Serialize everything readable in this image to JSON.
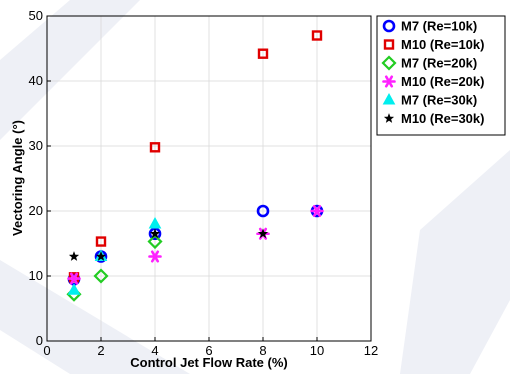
{
  "chart_data": {
    "type": "scatter",
    "xlabel": "Control Jet Flow Rate (%)",
    "ylabel": "Vectoring Angle (°)",
    "xlim": [
      0,
      12
    ],
    "ylim": [
      0,
      50
    ],
    "xticks": [
      "0",
      "2",
      "4",
      "6",
      "8",
      "10",
      "12"
    ],
    "yticks": [
      "0",
      "10",
      "20",
      "30",
      "40",
      "50"
    ],
    "grid": true,
    "legend_position": "outside-right",
    "series": [
      {
        "name": "M7 (Re=10k)",
        "marker": "circle-open",
        "color": "#0000ff",
        "points": [
          [
            1,
            9.5
          ],
          [
            2,
            13
          ],
          [
            4,
            16.5
          ],
          [
            8,
            20
          ],
          [
            10,
            20
          ]
        ]
      },
      {
        "name": "M10 (Re=10k)",
        "marker": "square-open",
        "color": "#e00000",
        "points": [
          [
            1,
            9.8
          ],
          [
            2,
            15.3
          ],
          [
            4,
            29.8
          ],
          [
            8,
            44.2
          ],
          [
            10,
            47
          ]
        ]
      },
      {
        "name": "M7 (Re=20k)",
        "marker": "diamond-open",
        "color": "#22cc22",
        "points": [
          [
            1,
            7.2
          ],
          [
            2,
            10
          ],
          [
            4,
            15.3
          ]
        ]
      },
      {
        "name": "M10 (Re=20k)",
        "marker": "asterisk",
        "color": "#ff22ff",
        "points": [
          [
            1,
            9.6
          ],
          [
            4,
            13
          ],
          [
            8,
            16.5
          ],
          [
            10,
            20
          ]
        ]
      },
      {
        "name": "M7 (Re=30k)",
        "marker": "triangle",
        "color": "#00eeee",
        "points": [
          [
            1,
            7.8
          ],
          [
            2,
            13
          ],
          [
            4,
            18
          ]
        ]
      },
      {
        "name": "M10 (Re=30k)",
        "marker": "star",
        "color": "#000000",
        "points": [
          [
            1,
            13
          ],
          [
            2,
            13
          ],
          [
            4,
            16.5
          ],
          [
            8,
            16.5
          ]
        ]
      }
    ]
  }
}
